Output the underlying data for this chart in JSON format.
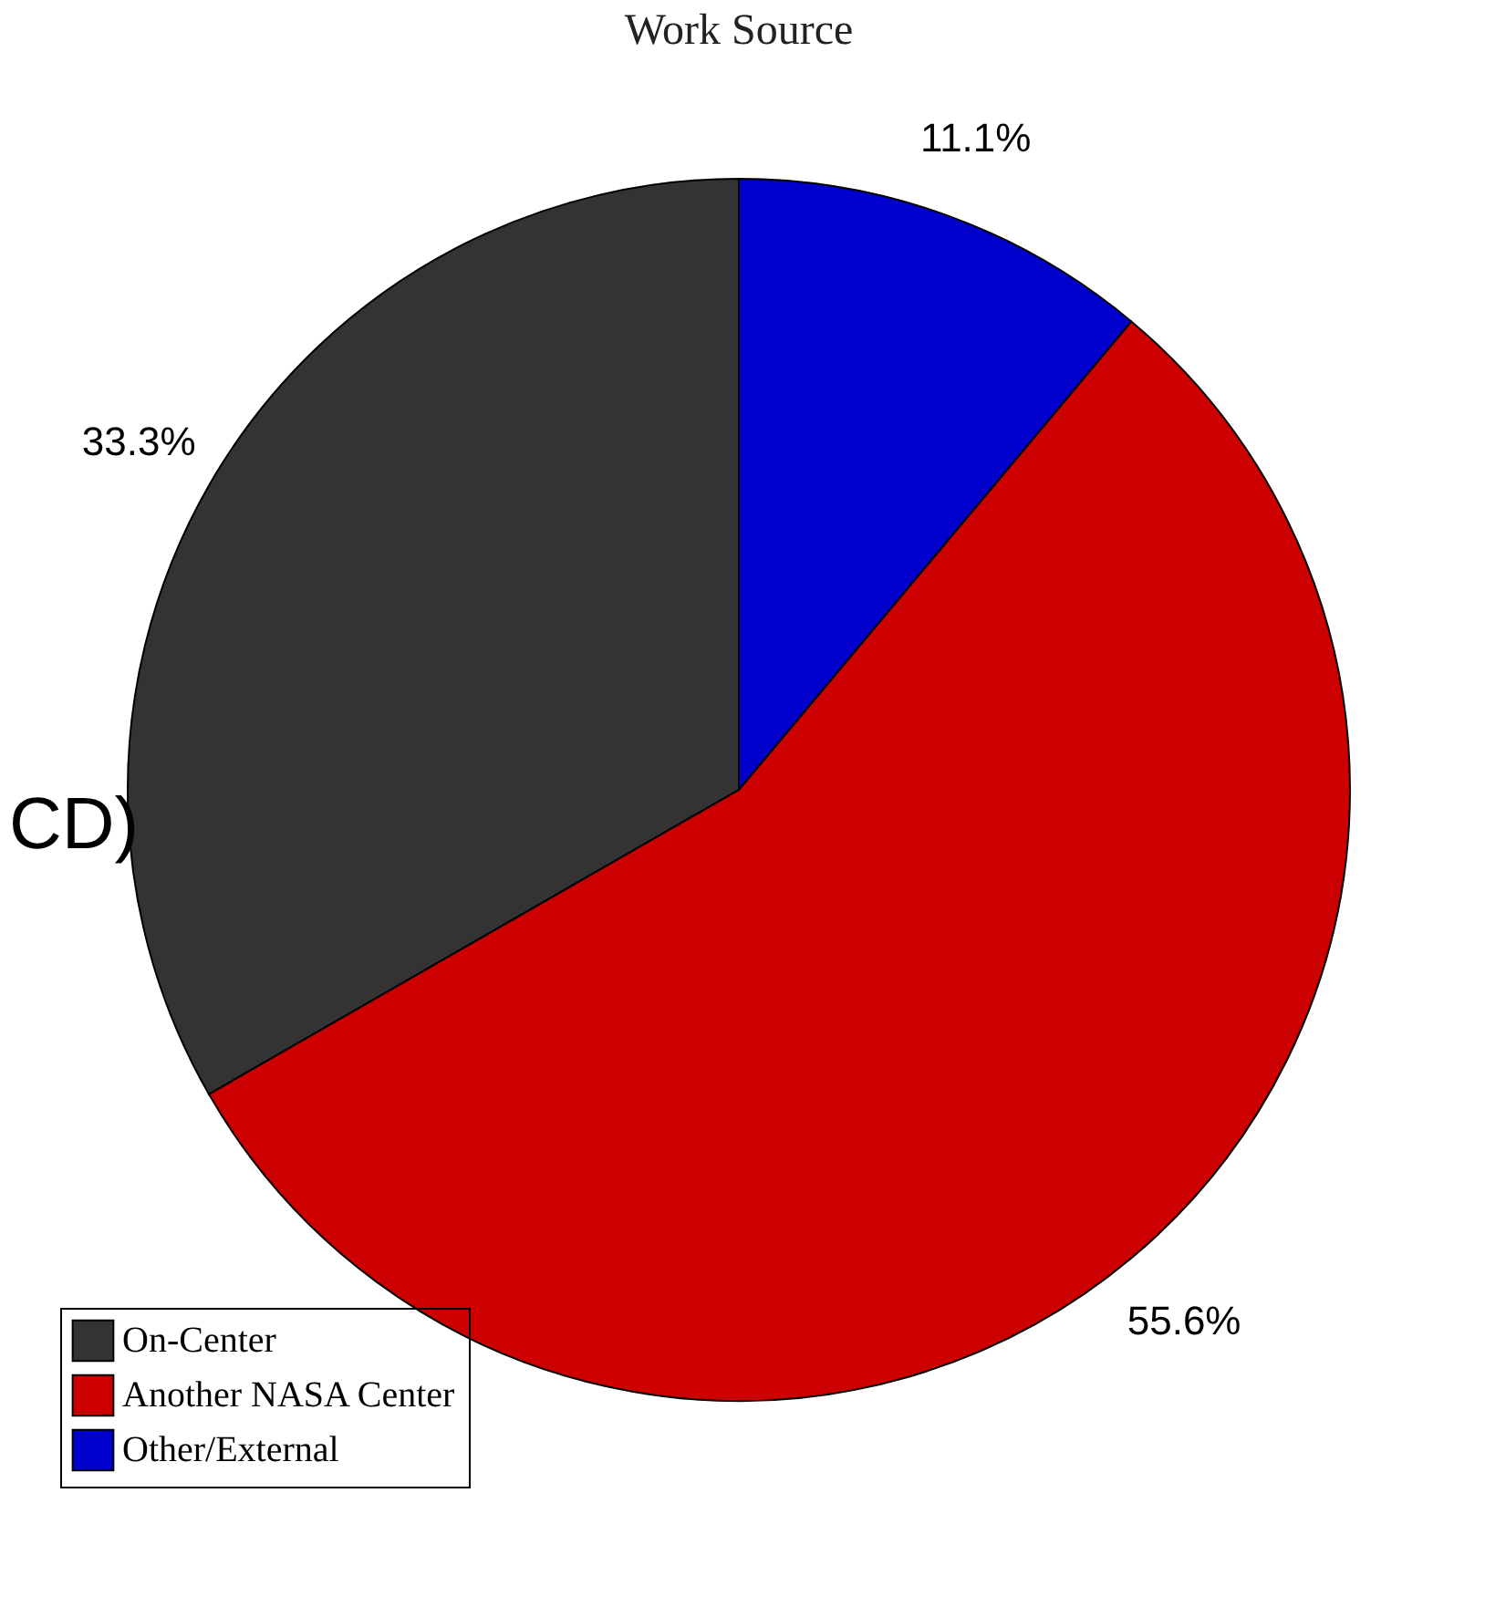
{
  "chart_data": {
    "type": "pie",
    "title": "Work Source",
    "categories": [
      "On-Center",
      "Another NASA Center",
      "Other/External"
    ],
    "values": [
      33.3,
      55.6,
      11.1
    ],
    "colors": [
      "#333333",
      "#cc0000",
      "#0000cc"
    ],
    "value_labels": [
      "33.3%",
      "55.6%",
      "11.1%"
    ],
    "legend": "bottom left",
    "annotations": [
      "CD)"
    ]
  }
}
